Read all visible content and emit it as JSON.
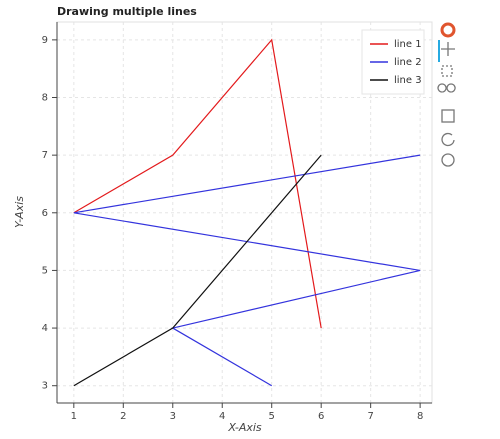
{
  "chart_data": {
    "type": "line",
    "title": "Drawing multiple lines",
    "x_label": "X-Axis",
    "y_label": "Y-Axis",
    "series": [
      {
        "name": "line 1",
        "color": "#e31a1c",
        "x": [
          1,
          3,
          5,
          6
        ],
        "values": [
          6,
          7,
          9,
          4
        ]
      },
      {
        "name": "line 2",
        "color": "#3333dd",
        "x": [
          8,
          1,
          8,
          3,
          5
        ],
        "values": [
          7,
          6,
          5,
          4,
          3
        ]
      },
      {
        "name": "line 3",
        "color": "#111111",
        "x": [
          1,
          3,
          6
        ],
        "values": [
          3,
          4,
          7
        ]
      }
    ],
    "xlim": [
      0.66,
      8.24
    ],
    "ylim": [
      2.7,
      9.31
    ],
    "xticks": [
      1,
      2,
      3,
      4,
      5,
      6,
      7,
      8
    ],
    "yticks": [
      3,
      4,
      5,
      6,
      7,
      8,
      9
    ],
    "grid": true,
    "legend": "top-right"
  }
}
